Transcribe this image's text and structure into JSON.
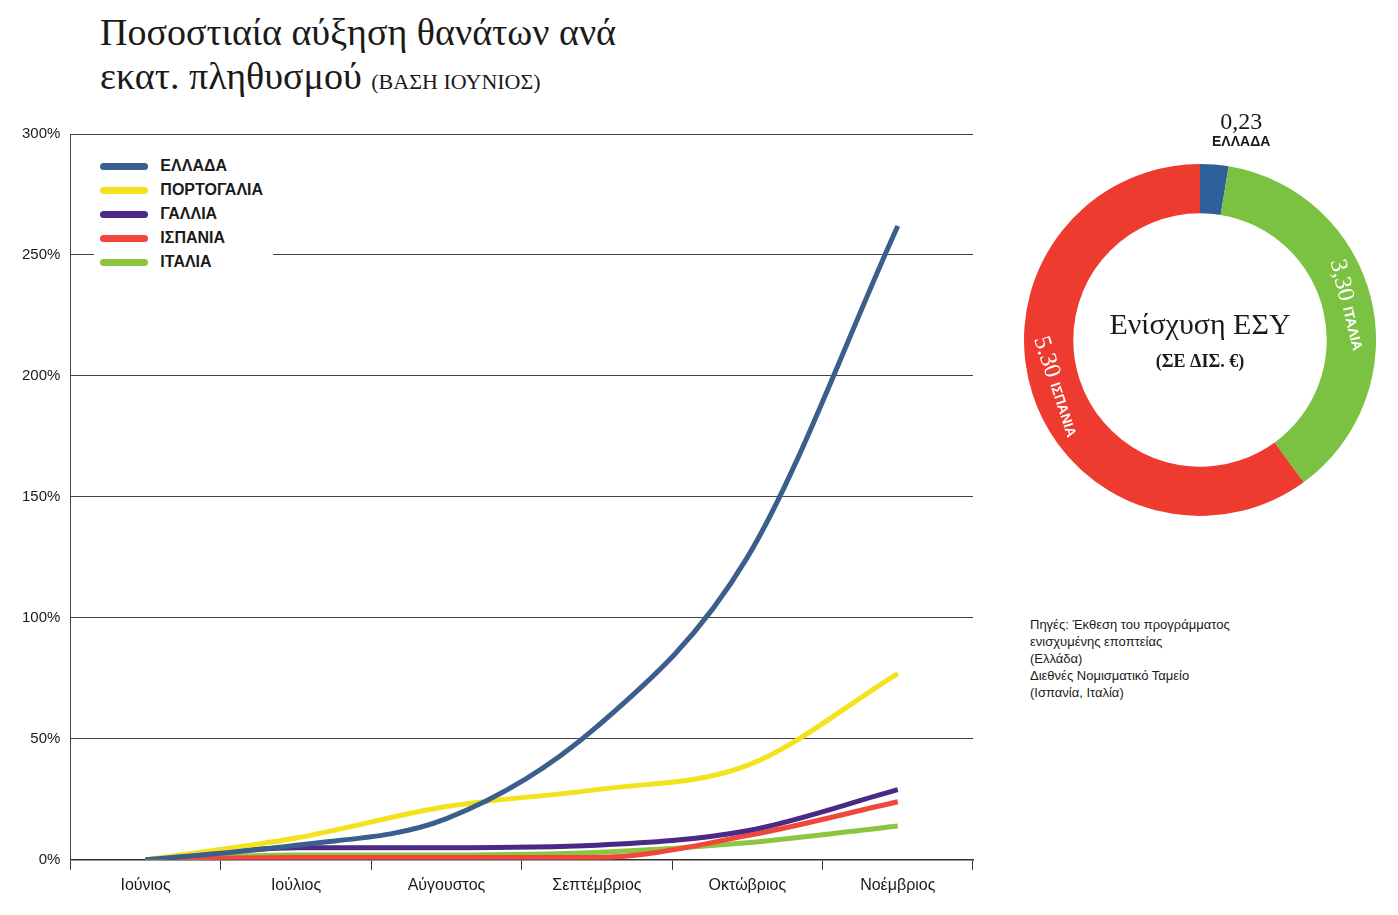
{
  "chart_data": [
    {
      "type": "line",
      "title": "Ποσοστιαία αύξηση θανάτων ανά εκατ. πληθυσμού",
      "subtitle": "(ΒΑΣΗ ΙΟΥΝΙΟΣ)",
      "categories": [
        "Ιούνιος",
        "Ιούλιος",
        "Αύγουστος",
        "Σεπτέμβριος",
        "Οκτώβριος",
        "Νοέμβριος"
      ],
      "series": [
        {
          "name": "ΕΛΛΑΔΑ",
          "color": "#3b5f8c",
          "values": [
            0,
            6,
            17,
            55,
            125,
            262
          ]
        },
        {
          "name": "ΠΟΡΤΟΓΑΛΙΑ",
          "color": "#f3e21c",
          "values": [
            0,
            9,
            22,
            29,
            39,
            77
          ]
        },
        {
          "name": "ΓΑΛΛΙΑ",
          "color": "#4a2a86",
          "values": [
            0,
            5,
            5,
            6,
            12,
            29
          ]
        },
        {
          "name": "ΙΣΠΑΝΙΑ",
          "color": "#f0463c",
          "values": [
            0,
            1,
            1,
            1,
            10,
            24
          ]
        },
        {
          "name": "ΙΤΑΛΙΑ",
          "color": "#8cc63f",
          "values": [
            0,
            2,
            2,
            3,
            7,
            14
          ]
        }
      ],
      "ylim": [
        0,
        300
      ],
      "yticks": [
        {
          "value": 0,
          "label": "0%"
        },
        {
          "value": 50,
          "label": "50%"
        },
        {
          "value": 100,
          "label": "100%"
        },
        {
          "value": 150,
          "label": "150%"
        },
        {
          "value": 200,
          "label": "200%"
        },
        {
          "value": 250,
          "label": "250%"
        },
        {
          "value": 300,
          "label": "300%"
        }
      ],
      "grid": true,
      "legend": "upper left"
    },
    {
      "type": "doughnut",
      "title": "Ενίσχυση ΕΣΥ",
      "subtitle": "(ΣΕ ΔΙΣ. €)",
      "categories": [
        "ΕΛΛΑΔΑ",
        "ΙΤΑΛΙΑ",
        "ΙΣΠΑΝΙΑ"
      ],
      "values": [
        0.23,
        3.3,
        5.3
      ],
      "value_labels": [
        "0,23",
        "3,30",
        "5.30"
      ],
      "colors": [
        "#2f5f98",
        "#7cc242",
        "#ee3b2f"
      ],
      "data_labels": true,
      "source": [
        "Πηγές: Έκθεση του προγράμματος",
        "ενισχυμένης εποπτείας",
        "(Ελλάδα)",
        "Διεθνές Νομισματικό Ταμείο",
        "(Ισπανία, Ιταλία)"
      ]
    }
  ]
}
